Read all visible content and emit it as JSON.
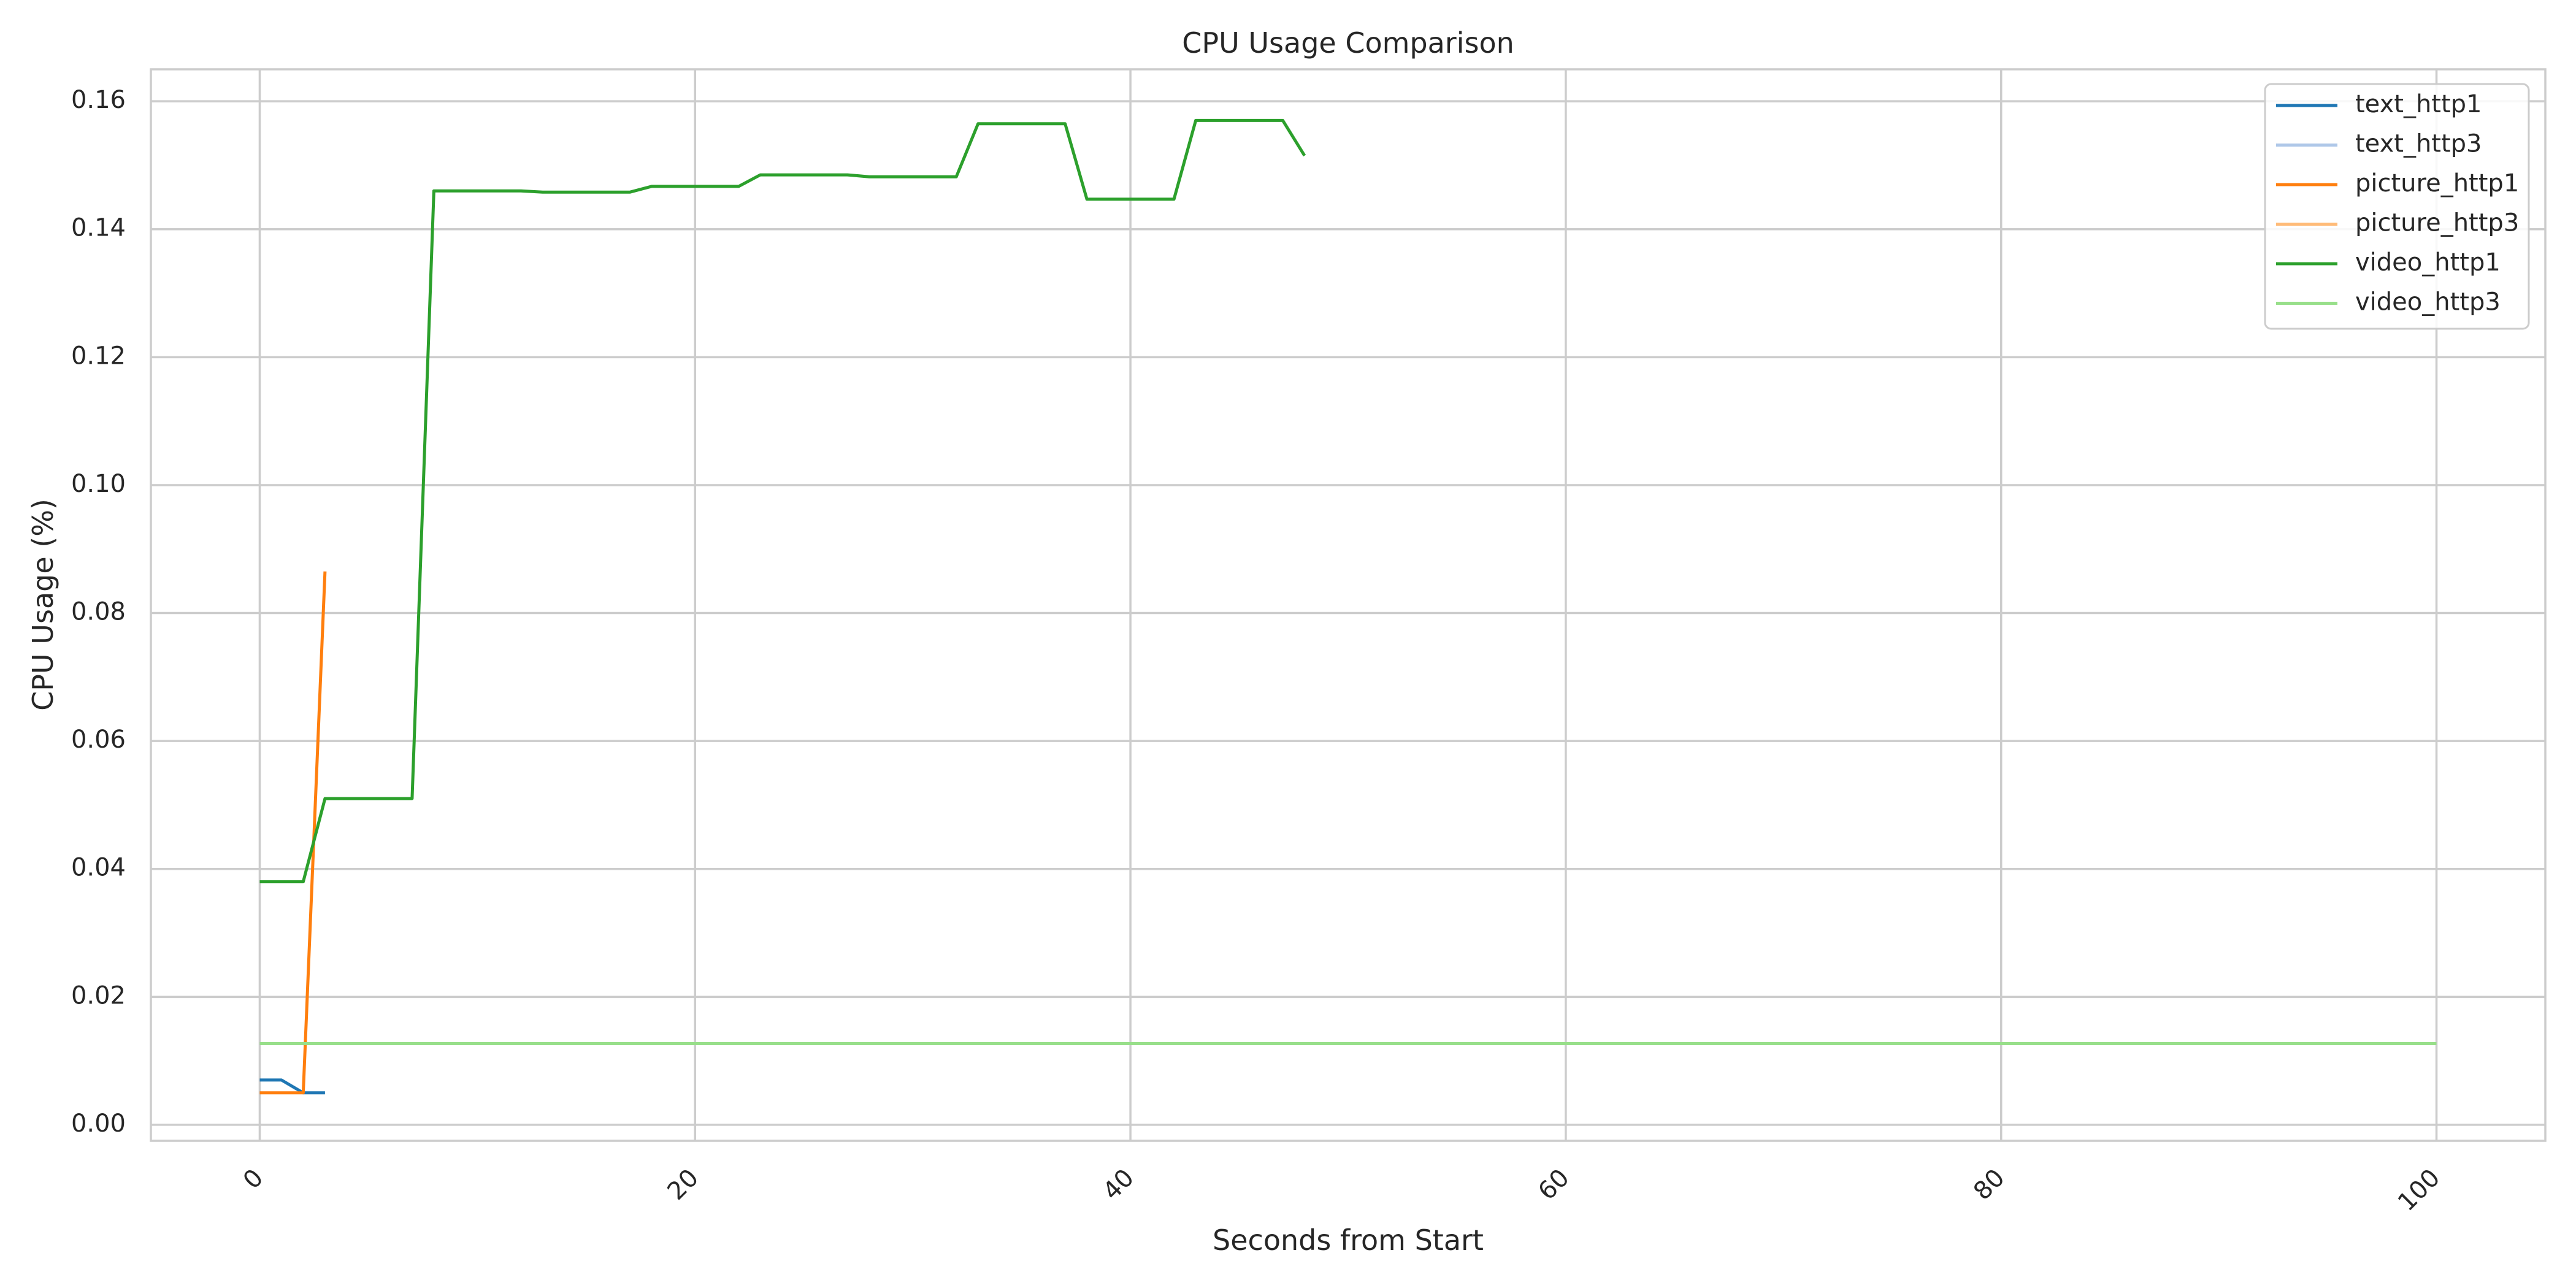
{
  "chart_data": {
    "type": "line",
    "title": "CPU Usage Comparison",
    "xlabel": "Seconds from Start",
    "ylabel": "CPU Usage (%)",
    "xlim": [
      -5,
      105
    ],
    "ylim": [
      -0.0025,
      0.165
    ],
    "xticks": [
      0,
      20,
      40,
      60,
      80,
      100
    ],
    "yticks": [
      0.0,
      0.02,
      0.04,
      0.06,
      0.08,
      0.1,
      0.12,
      0.14,
      0.16
    ],
    "ytick_labels": [
      "0.00",
      "0.02",
      "0.04",
      "0.06",
      "0.08",
      "0.10",
      "0.12",
      "0.14",
      "0.16"
    ],
    "xtick_rotation": 45,
    "grid": true,
    "legend_position": "top-right",
    "series": [
      {
        "name": "text_http1",
        "color": "#1f77b4",
        "x": [
          0,
          1,
          2,
          3
        ],
        "y": [
          0.007,
          0.007,
          0.005,
          0.005
        ]
      },
      {
        "name": "text_http3",
        "color": "#aec7e8",
        "x": [],
        "y": []
      },
      {
        "name": "picture_http1",
        "color": "#ff7f0e",
        "x": [
          0,
          1,
          2,
          3
        ],
        "y": [
          0.005,
          0.005,
          0.005,
          0.0865
        ]
      },
      {
        "name": "picture_http3",
        "color": "#ffbb78",
        "x": [],
        "y": []
      },
      {
        "name": "video_http1",
        "color": "#2ca02c",
        "x": [
          0,
          1,
          2,
          3,
          4,
          5,
          6,
          7,
          8,
          9,
          10,
          11,
          12,
          13,
          14,
          15,
          16,
          17,
          18,
          19,
          20,
          21,
          22,
          23,
          24,
          25,
          26,
          27,
          28,
          29,
          30,
          31,
          32,
          33,
          34,
          35,
          36,
          37,
          38,
          39,
          40,
          41,
          42,
          43,
          44,
          45,
          46,
          47,
          48
        ],
        "y": [
          0.038,
          0.038,
          0.038,
          0.051,
          0.051,
          0.051,
          0.051,
          0.051,
          0.146,
          0.146,
          0.146,
          0.146,
          0.146,
          0.1458,
          0.1458,
          0.1458,
          0.1458,
          0.1458,
          0.1467,
          0.1467,
          0.1467,
          0.1467,
          0.1467,
          0.1485,
          0.1485,
          0.1485,
          0.1485,
          0.1485,
          0.1482,
          0.1482,
          0.1482,
          0.1482,
          0.1482,
          0.1565,
          0.1565,
          0.1565,
          0.1565,
          0.1565,
          0.1447,
          0.1447,
          0.1447,
          0.1447,
          0.1447,
          0.157,
          0.157,
          0.157,
          0.157,
          0.157,
          0.1515
        ]
      },
      {
        "name": "video_http3",
        "color": "#98df8a",
        "x": [
          0,
          100
        ],
        "y": [
          0.0127,
          0.0127
        ]
      }
    ]
  }
}
